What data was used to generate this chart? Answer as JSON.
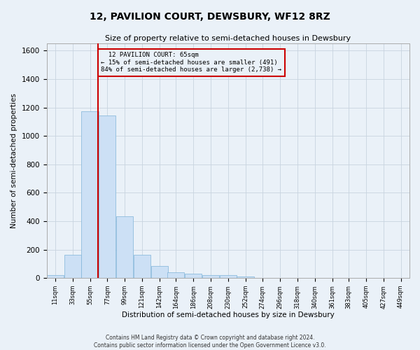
{
  "title": "12, PAVILION COURT, DEWSBURY, WF12 8RZ",
  "subtitle": "Size of property relative to semi-detached houses in Dewsbury",
  "xlabel": "Distribution of semi-detached houses by size in Dewsbury",
  "ylabel": "Number of semi-detached properties",
  "property_size": 65,
  "property_label": "12 PAVILION COURT: 65sqm",
  "pct_smaller": 15,
  "pct_larger": 84,
  "count_smaller": 491,
  "count_larger": 2738,
  "bar_color": "#cce0f5",
  "bar_edge_color": "#7fb3d9",
  "vline_color": "#cc0000",
  "annotation_box_color": "#cc0000",
  "annotation_text_color": "#000000",
  "grid_color": "#c8d4e0",
  "bg_color": "#eaf1f8",
  "categories": [
    "11sqm",
    "33sqm",
    "55sqm",
    "77sqm",
    "99sqm",
    "121sqm",
    "142sqm",
    "164sqm",
    "186sqm",
    "208sqm",
    "230sqm",
    "252sqm",
    "274sqm",
    "296sqm",
    "318sqm",
    "340sqm",
    "361sqm",
    "383sqm",
    "405sqm",
    "427sqm",
    "449sqm"
  ],
  "bin_edges": [
    0,
    22,
    44,
    66,
    88,
    110,
    132,
    153,
    175,
    197,
    219,
    241,
    263,
    285,
    307,
    329,
    351,
    372,
    394,
    416,
    438,
    460
  ],
  "values": [
    20,
    165,
    1175,
    1145,
    435,
    165,
    85,
    40,
    28,
    22,
    18,
    12,
    0,
    0,
    0,
    0,
    0,
    0,
    0,
    0,
    0
  ],
  "ylim": [
    0,
    1650
  ],
  "yticks": [
    0,
    200,
    400,
    600,
    800,
    1000,
    1200,
    1400,
    1600
  ],
  "footer_line1": "Contains HM Land Registry data © Crown copyright and database right 2024.",
  "footer_line2": "Contains public sector information licensed under the Open Government Licence v3.0."
}
